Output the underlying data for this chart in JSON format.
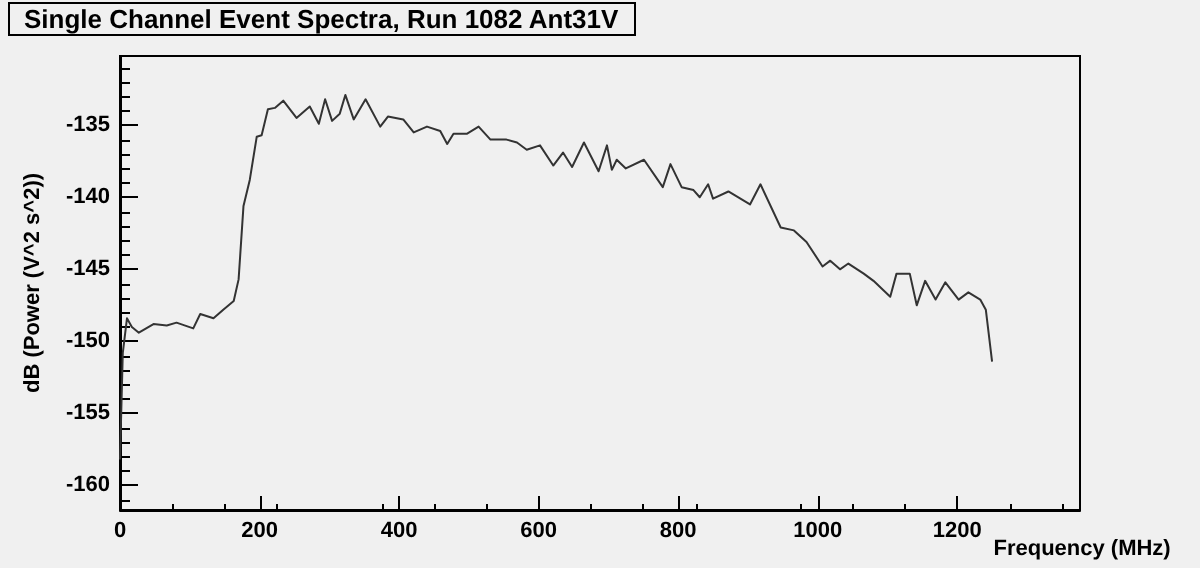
{
  "chart_data": {
    "type": "line",
    "title": "Single Channel Event Spectra, Run 1082 Ant31V",
    "xlabel": "Frequency (MHz)",
    "ylabel": "dB (Power (V^2 s^2))",
    "xlim": [
      0,
      1376
    ],
    "xticks": [
      0,
      200,
      400,
      600,
      800,
      1000,
      1200
    ],
    "ylim": [
      -161.7,
      -130.2
    ],
    "yticks": [
      -160,
      -155,
      -150,
      -145,
      -140,
      -135
    ],
    "marker": "none",
    "line_style": "solid",
    "series": [
      {
        "color": "#333333",
        "x": [
          0,
          4,
          10,
          17,
          27,
          48,
          67,
          81,
          105,
          115,
          134,
          148,
          163,
          170,
          177,
          186,
          196,
          203,
          212,
          222,
          234,
          253,
          272,
          285,
          294,
          304,
          315,
          323,
          335,
          352,
          373,
          384,
          406,
          421,
          440,
          459,
          469,
          478,
          497,
          514,
          531,
          554,
          569,
          583,
          602,
          621,
          635,
          648,
          665,
          686,
          698,
          705,
          712,
          725,
          751,
          778,
          789,
          805,
          822,
          831,
          843,
          850,
          872,
          903,
          918,
          947,
          966,
          984,
          1007,
          1018,
          1032,
          1044,
          1066,
          1080,
          1104,
          1113,
          1132,
          1142,
          1154,
          1169,
          1183,
          1202,
          1216,
          1233,
          1241,
          1250
        ],
        "values": [
          -158.2,
          -150.8,
          -148.4,
          -149,
          -149.4,
          -148.8,
          -148.9,
          -148.7,
          -149.1,
          -148.1,
          -148.4,
          -147.8,
          -147.2,
          -145.7,
          -140.6,
          -138.8,
          -135.8,
          -135.7,
          -133.9,
          -133.8,
          -133.3,
          -134.5,
          -133.7,
          -134.9,
          -133.2,
          -134.7,
          -134.2,
          -132.9,
          -134.6,
          -133.2,
          -135.1,
          -134.4,
          -134.6,
          -135.5,
          -135.1,
          -135.4,
          -136.3,
          -135.6,
          -135.6,
          -135.1,
          -136,
          -136,
          -136.2,
          -136.7,
          -136.4,
          -137.8,
          -136.9,
          -137.9,
          -136.2,
          -138.2,
          -136.4,
          -138.1,
          -137.4,
          -138,
          -137.4,
          -139.3,
          -137.7,
          -139.3,
          -139.5,
          -140,
          -139.1,
          -140.1,
          -139.6,
          -140.5,
          -139.1,
          -142.1,
          -142.3,
          -143.1,
          -144.8,
          -144.4,
          -145,
          -144.6,
          -145.3,
          -145.8,
          -146.9,
          -145.3,
          -145.3,
          -147.5,
          -145.8,
          -147.1,
          -145.9,
          -147.1,
          -146.6,
          -147.1,
          -147.8,
          -151.4
        ]
      }
    ]
  }
}
